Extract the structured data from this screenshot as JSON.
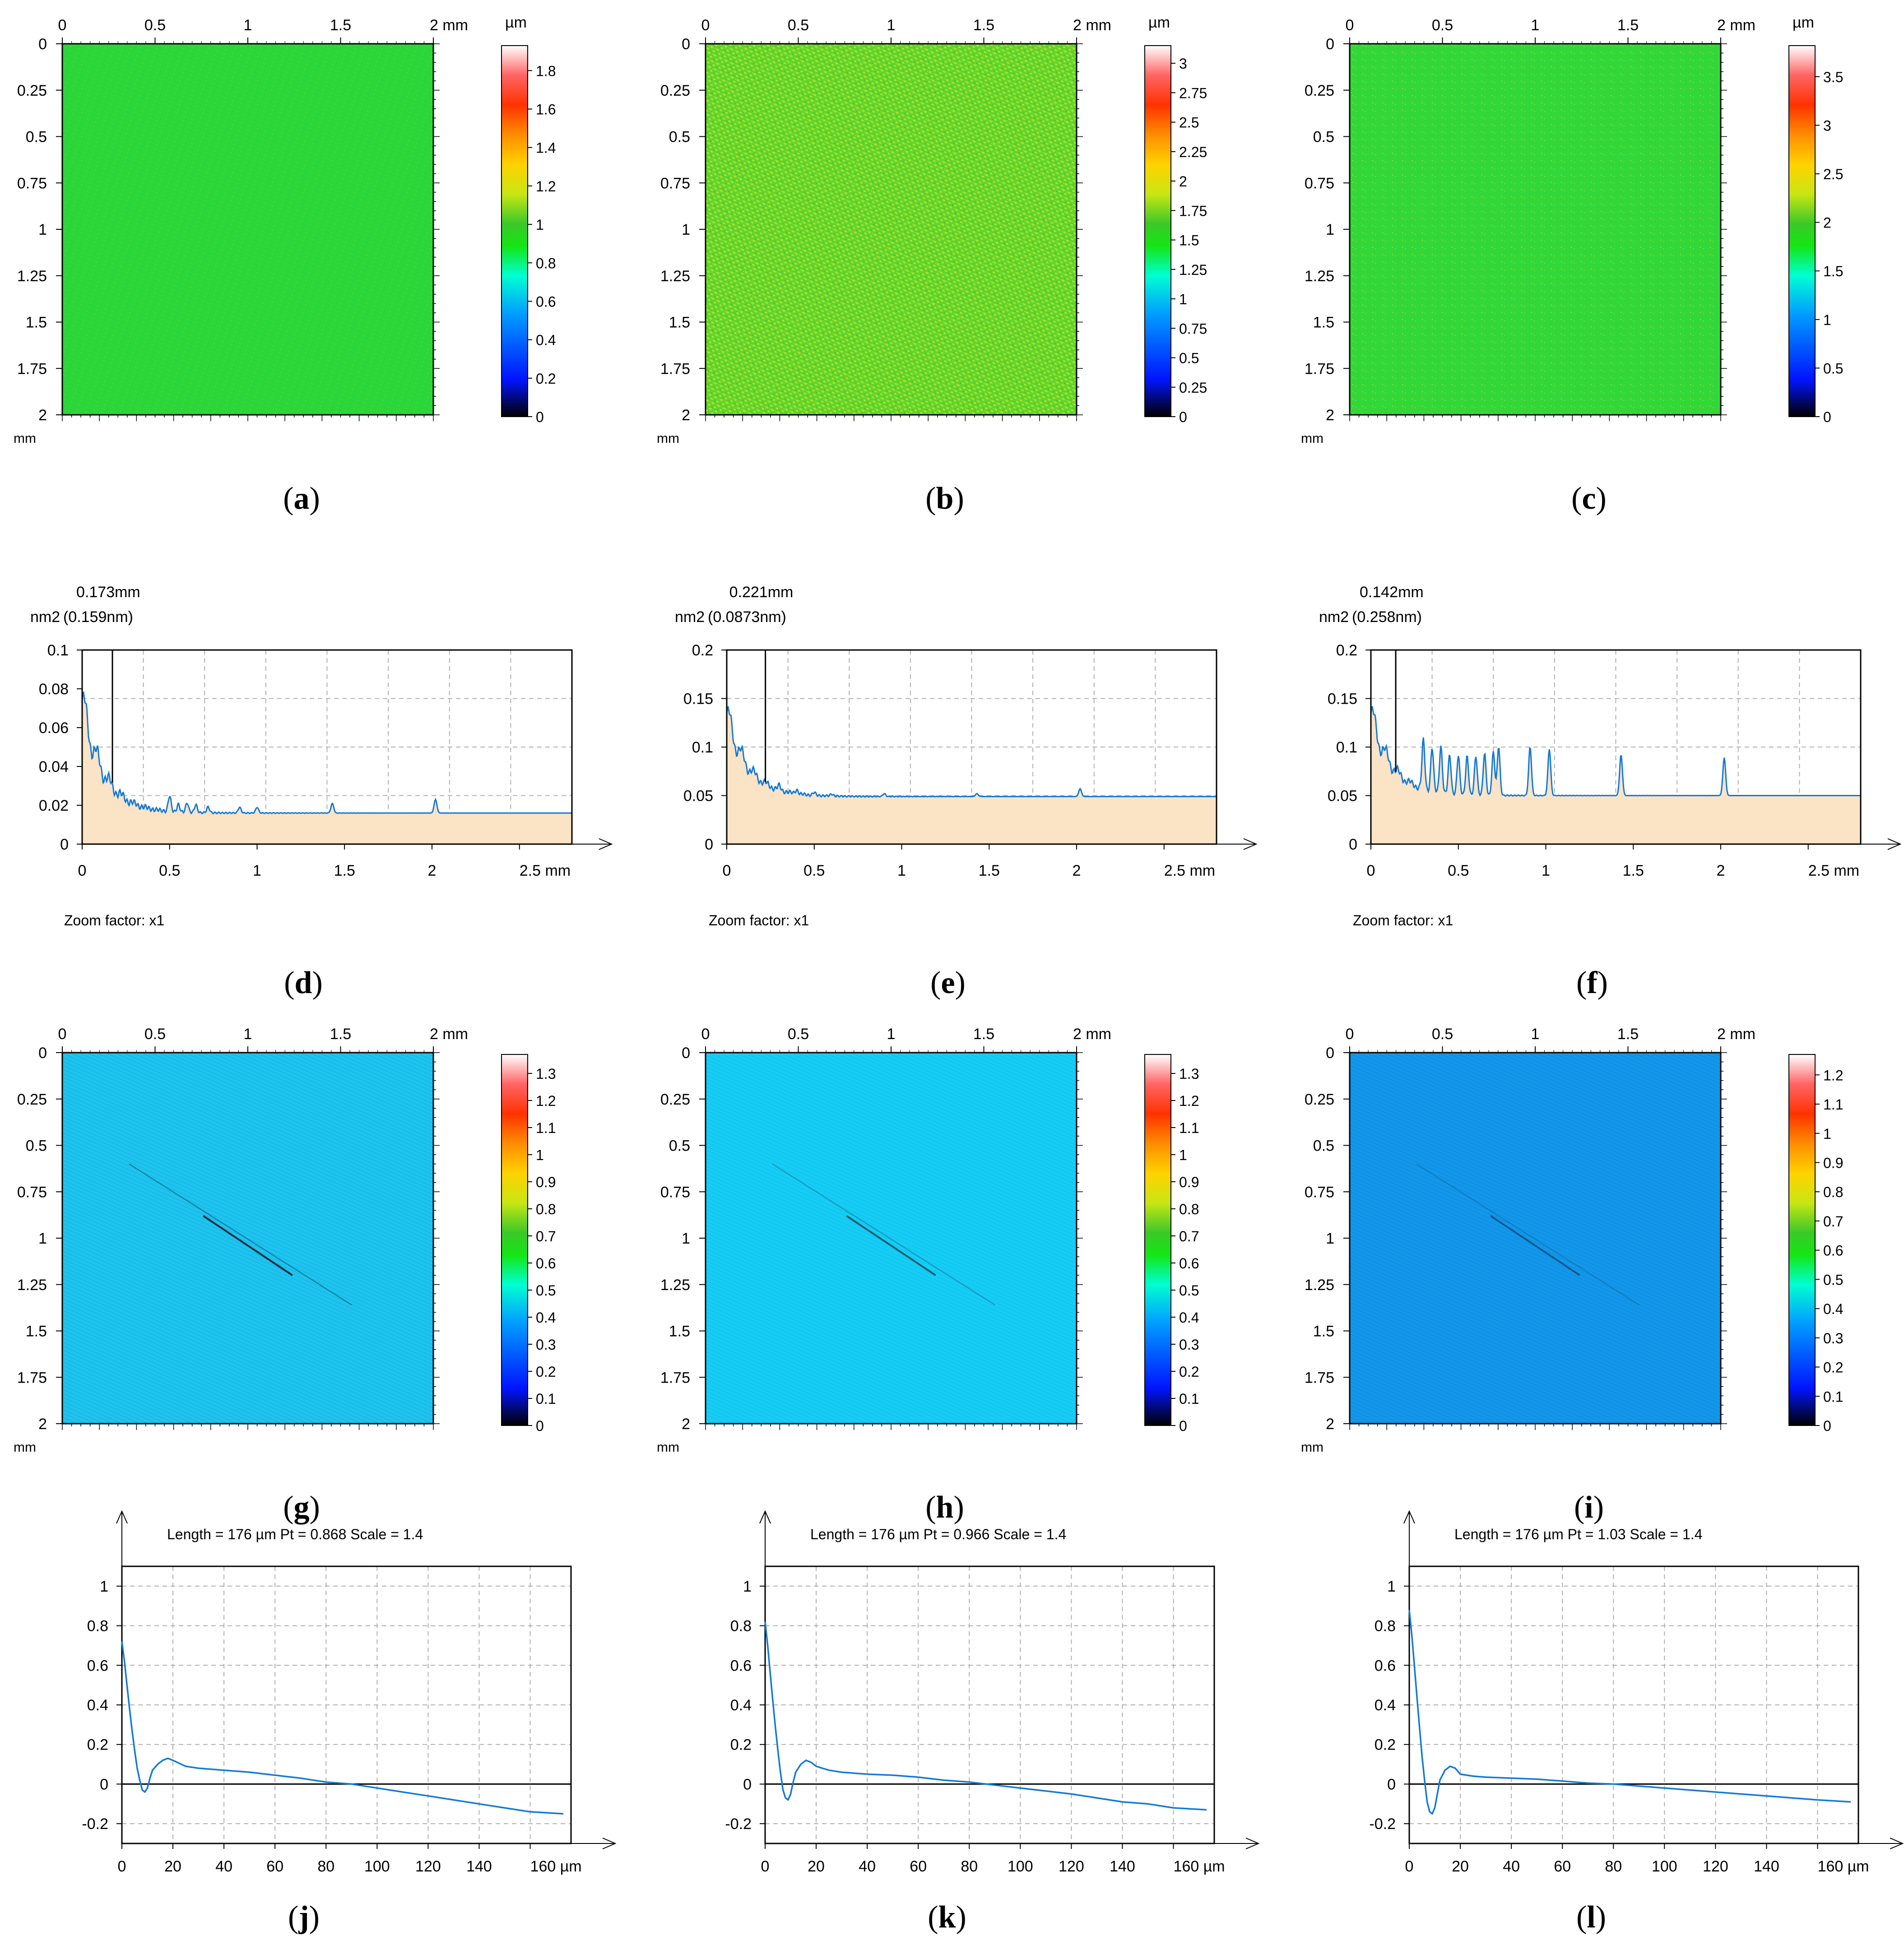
{
  "figure": {
    "heatmaps_row1": [
      {
        "panel": "a",
        "caption_letter": "a",
        "x_unit": "mm",
        "y_unit": "mm",
        "x_ticks": [
          "0",
          "0.5",
          "1",
          "1.5",
          "2 mm"
        ],
        "y_ticks": [
          "0",
          "0.25",
          "0.5",
          "0.75",
          "1",
          "1.25",
          "1.5",
          "1.75",
          "2"
        ],
        "colorbar": {
          "unit": "µm",
          "ticks": [
            "0",
            "0.2",
            "0.4",
            "0.6",
            "0.8",
            "1",
            "1.2",
            "1.4",
            "1.6",
            "1.8"
          ],
          "max": 1.93
        },
        "fill_color": "#2bd638",
        "pattern": "fine_green"
      },
      {
        "panel": "b",
        "caption_letter": "b",
        "x_unit": "mm",
        "y_unit": "mm",
        "x_ticks": [
          "0",
          "0.5",
          "1",
          "1.5",
          "2 mm"
        ],
        "y_ticks": [
          "0",
          "0.25",
          "0.5",
          "0.75",
          "1",
          "1.25",
          "1.5",
          "1.75",
          "2"
        ],
        "colorbar": {
          "unit": "µm",
          "ticks": [
            "0",
            "0.25",
            "0.5",
            "0.75",
            "1",
            "1.25",
            "1.5",
            "1.75",
            "2",
            "2.25",
            "2.5",
            "2.75",
            "3"
          ],
          "max": 3.15
        },
        "fill_color": "#7fd92c",
        "pattern": "mottled_yellow_green"
      },
      {
        "panel": "c",
        "caption_letter": "c",
        "x_unit": "mm",
        "y_unit": "mm",
        "x_ticks": [
          "0",
          "0.5",
          "1",
          "1.5",
          "2 mm"
        ],
        "y_ticks": [
          "0",
          "0.25",
          "0.5",
          "0.75",
          "1",
          "1.25",
          "1.5",
          "1.75",
          "2"
        ],
        "colorbar": {
          "unit": "µm",
          "ticks": [
            "0",
            "0.5",
            "1",
            "1.5",
            "2",
            "2.5",
            "3",
            "3.5"
          ],
          "max": 3.82
        },
        "fill_color": "#33d838",
        "pattern": "speckled_green"
      }
    ],
    "psd_row": [
      {
        "panel": "d",
        "caption_letter": "d",
        "marker_text": "0.173mm",
        "unit_label": "nm2",
        "marker_value_text": "(0.159nm)",
        "zoom_text": "Zoom factor: x1",
        "x_tick_labels": [
          "0",
          "0.5",
          "1",
          "1.5",
          "2",
          "2.5 mm"
        ],
        "y_tick_labels": [
          "0",
          "0.02",
          "0.04",
          "0.06",
          "0.08",
          "0.1"
        ],
        "xlim": [
          0,
          2.8
        ],
        "ylim": [
          0,
          0.1
        ],
        "marker_x": 0.173,
        "baseline": 0.016,
        "peak": 0.084,
        "spikes": [
          [
            0.5,
            0.024
          ],
          [
            0.55,
            0.02
          ],
          [
            0.6,
            0.021
          ],
          [
            0.65,
            0.02
          ],
          [
            0.72,
            0.019
          ],
          [
            0.9,
            0.019
          ],
          [
            1.0,
            0.019
          ],
          [
            1.43,
            0.021
          ],
          [
            2.02,
            0.023
          ]
        ]
      },
      {
        "panel": "e",
        "caption_letter": "e",
        "marker_text": "0.221mm",
        "unit_label": "nm2",
        "marker_value_text": "(0.0873nm)",
        "zoom_text": "Zoom factor: x1",
        "x_tick_labels": [
          "0",
          "0.5",
          "1",
          "1.5",
          "2",
          "2.5 mm"
        ],
        "y_tick_labels": [
          "0",
          "0.05",
          "0.1",
          "0.15",
          "0.2"
        ],
        "xlim": [
          0,
          2.8
        ],
        "ylim": [
          0,
          0.2
        ],
        "marker_x": 0.221,
        "baseline": 0.049,
        "peak": 0.15,
        "spikes": [
          [
            0.3,
            0.053
          ],
          [
            0.4,
            0.053
          ],
          [
            0.5,
            0.052
          ],
          [
            0.6,
            0.051
          ],
          [
            0.9,
            0.052
          ],
          [
            1.43,
            0.052
          ],
          [
            2.02,
            0.057
          ]
        ]
      },
      {
        "panel": "f",
        "caption_letter": "f",
        "marker_text": "0.142mm",
        "unit_label": "nm2",
        "marker_value_text": "(0.258nm)",
        "zoom_text": "Zoom factor: x1",
        "x_tick_labels": [
          "0",
          "0.5",
          "1",
          "1.5",
          "2",
          "2.5 mm"
        ],
        "y_tick_labels": [
          "0",
          "0.05",
          "0.1",
          "0.15",
          "0.2"
        ],
        "xlim": [
          0,
          2.8
        ],
        "ylim": [
          0,
          0.2
        ],
        "marker_x": 0.142,
        "baseline": 0.05,
        "peak": 0.15,
        "spikes": [
          [
            0.3,
            0.1
          ],
          [
            0.35,
            0.095
          ],
          [
            0.4,
            0.098
          ],
          [
            0.45,
            0.09
          ],
          [
            0.5,
            0.09
          ],
          [
            0.55,
            0.09
          ],
          [
            0.6,
            0.09
          ],
          [
            0.65,
            0.093
          ],
          [
            0.7,
            0.095
          ],
          [
            0.73,
            0.1
          ],
          [
            0.91,
            0.1
          ],
          [
            1.02,
            0.098
          ],
          [
            1.43,
            0.092
          ],
          [
            2.02,
            0.089
          ]
        ]
      }
    ],
    "heatmaps_row3": [
      {
        "panel": "g",
        "caption_letter": "g",
        "x_unit": "mm",
        "y_unit": "mm",
        "x_ticks": [
          "0",
          "0.5",
          "1",
          "1.5",
          "2 mm"
        ],
        "y_ticks": [
          "0",
          "0.25",
          "0.5",
          "0.75",
          "1",
          "1.25",
          "1.5",
          "1.75",
          "2"
        ],
        "colorbar": {
          "unit": "",
          "ticks": [
            "0",
            "0.1",
            "0.2",
            "0.3",
            "0.4",
            "0.5",
            "0.6",
            "0.7",
            "0.8",
            "0.9",
            "1",
            "1.1",
            "1.2",
            "1.3"
          ],
          "max": 1.37
        },
        "fill_color": "#1ec3ee",
        "streak_strength": 0.85
      },
      {
        "panel": "h",
        "caption_letter": "h",
        "x_unit": "mm",
        "y_unit": "mm",
        "x_ticks": [
          "0",
          "0.5",
          "1",
          "1.5",
          "2 mm"
        ],
        "y_ticks": [
          "0",
          "0.25",
          "0.5",
          "0.75",
          "1",
          "1.25",
          "1.5",
          "1.75",
          "2"
        ],
        "colorbar": {
          "unit": "",
          "ticks": [
            "0",
            "0.1",
            "0.2",
            "0.3",
            "0.4",
            "0.5",
            "0.6",
            "0.7",
            "0.8",
            "0.9",
            "1",
            "1.1",
            "1.2",
            "1.3"
          ],
          "max": 1.37
        },
        "fill_color": "#15cdf5",
        "streak_strength": 0.6
      },
      {
        "panel": "i",
        "caption_letter": "i",
        "x_unit": "mm",
        "y_unit": "mm",
        "x_ticks": [
          "0",
          "0.5",
          "1",
          "1.5",
          "2 mm"
        ],
        "y_ticks": [
          "0",
          "0.25",
          "0.5",
          "0.75",
          "1",
          "1.25",
          "1.5",
          "1.75",
          "2"
        ],
        "colorbar": {
          "unit": "",
          "ticks": [
            "0",
            "0.1",
            "0.2",
            "0.3",
            "0.4",
            "0.5",
            "0.6",
            "0.7",
            "0.8",
            "0.9",
            "1",
            "1.1",
            "1.2"
          ],
          "max": 1.27
        },
        "fill_color": "#1297ea",
        "streak_strength": 0.45
      }
    ],
    "acf_row": [
      {
        "panel": "j",
        "caption_letter": "j",
        "header": "Length = 176 µm  Pt = 0.868    Scale = 1.4",
        "x_tick_labels": [
          "0",
          "20",
          "40",
          "60",
          "80",
          "100",
          "120",
          "140",
          "160 µm"
        ],
        "y_tick_labels": [
          "-0.2",
          "0",
          "0.2",
          "0.4",
          "0.6",
          "0.8",
          "1"
        ],
        "xlim": [
          0,
          176
        ],
        "ylim": [
          -0.3,
          1.1
        ],
        "points": [
          [
            0,
            0.72
          ],
          [
            1,
            0.62
          ],
          [
            2,
            0.5
          ],
          [
            3,
            0.38
          ],
          [
            4,
            0.27
          ],
          [
            5,
            0.17
          ],
          [
            6,
            0.08
          ],
          [
            7,
            0.02
          ],
          [
            8,
            -0.03
          ],
          [
            9,
            -0.04
          ],
          [
            10,
            -0.02
          ],
          [
            11,
            0.03
          ],
          [
            12,
            0.07
          ],
          [
            14,
            0.1
          ],
          [
            16,
            0.12
          ],
          [
            18,
            0.13
          ],
          [
            20,
            0.12
          ],
          [
            25,
            0.09
          ],
          [
            30,
            0.08
          ],
          [
            40,
            0.07
          ],
          [
            50,
            0.06
          ],
          [
            60,
            0.045
          ],
          [
            70,
            0.03
          ],
          [
            80,
            0.01
          ],
          [
            90,
            0.0
          ],
          [
            100,
            -0.02
          ],
          [
            110,
            -0.04
          ],
          [
            120,
            -0.06
          ],
          [
            130,
            -0.08
          ],
          [
            140,
            -0.1
          ],
          [
            150,
            -0.12
          ],
          [
            160,
            -0.14
          ],
          [
            173,
            -0.15
          ]
        ]
      },
      {
        "panel": "k",
        "caption_letter": "k",
        "header": "Length = 176 µm  Pt = 0.966    Scale = 1.4",
        "x_tick_labels": [
          "0",
          "20",
          "40",
          "60",
          "80",
          "100",
          "120",
          "140",
          "160 µm"
        ],
        "y_tick_labels": [
          "-0.2",
          "0",
          "0.2",
          "0.4",
          "0.6",
          "0.8",
          "1"
        ],
        "xlim": [
          0,
          176
        ],
        "ylim": [
          -0.3,
          1.1
        ],
        "points": [
          [
            0,
            0.82
          ],
          [
            1,
            0.7
          ],
          [
            2,
            0.56
          ],
          [
            3,
            0.42
          ],
          [
            4,
            0.29
          ],
          [
            5,
            0.17
          ],
          [
            6,
            0.06
          ],
          [
            7,
            -0.03
          ],
          [
            8,
            -0.07
          ],
          [
            9,
            -0.08
          ],
          [
            10,
            -0.05
          ],
          [
            11,
            0.01
          ],
          [
            12,
            0.06
          ],
          [
            14,
            0.1
          ],
          [
            16,
            0.12
          ],
          [
            18,
            0.11
          ],
          [
            20,
            0.09
          ],
          [
            25,
            0.07
          ],
          [
            30,
            0.06
          ],
          [
            40,
            0.05
          ],
          [
            50,
            0.045
          ],
          [
            60,
            0.035
          ],
          [
            70,
            0.02
          ],
          [
            80,
            0.01
          ],
          [
            90,
            -0.005
          ],
          [
            100,
            -0.02
          ],
          [
            110,
            -0.035
          ],
          [
            120,
            -0.05
          ],
          [
            130,
            -0.07
          ],
          [
            140,
            -0.09
          ],
          [
            150,
            -0.1
          ],
          [
            160,
            -0.12
          ],
          [
            173,
            -0.13
          ]
        ]
      },
      {
        "panel": "l",
        "caption_letter": "l",
        "header": "Length = 176 µm  Pt = 1.03    Scale = 1.4",
        "x_tick_labels": [
          "0",
          "20",
          "40",
          "60",
          "80",
          "100",
          "120",
          "140",
          "160 µm"
        ],
        "y_tick_labels": [
          "-0.2",
          "0",
          "0.2",
          "0.4",
          "0.6",
          "0.8",
          "1"
        ],
        "xlim": [
          0,
          176
        ],
        "ylim": [
          -0.3,
          1.1
        ],
        "points": [
          [
            0,
            0.88
          ],
          [
            1,
            0.75
          ],
          [
            2,
            0.6
          ],
          [
            3,
            0.44
          ],
          [
            4,
            0.29
          ],
          [
            5,
            0.14
          ],
          [
            6,
            0.02
          ],
          [
            7,
            -0.09
          ],
          [
            8,
            -0.14
          ],
          [
            9,
            -0.15
          ],
          [
            10,
            -0.12
          ],
          [
            11,
            -0.05
          ],
          [
            12,
            0.02
          ],
          [
            14,
            0.07
          ],
          [
            16,
            0.09
          ],
          [
            18,
            0.08
          ],
          [
            20,
            0.05
          ],
          [
            25,
            0.04
          ],
          [
            30,
            0.035
          ],
          [
            40,
            0.03
          ],
          [
            50,
            0.025
          ],
          [
            60,
            0.015
          ],
          [
            70,
            0.005
          ],
          [
            80,
            0.0
          ],
          [
            90,
            -0.01
          ],
          [
            100,
            -0.02
          ],
          [
            110,
            -0.03
          ],
          [
            120,
            -0.04
          ],
          [
            130,
            -0.05
          ],
          [
            140,
            -0.06
          ],
          [
            150,
            -0.07
          ],
          [
            160,
            -0.08
          ],
          [
            173,
            -0.09
          ]
        ]
      }
    ]
  },
  "chart_data": [
    {
      "type": "heatmap",
      "panel": "a",
      "title": "",
      "xlabel": "mm",
      "ylabel": "mm",
      "xlim": [
        0,
        2
      ],
      "ylim": [
        0,
        2
      ],
      "colorbar_unit": "µm",
      "colorbar_range": [
        0,
        1.93
      ]
    },
    {
      "type": "heatmap",
      "panel": "b",
      "title": "",
      "xlabel": "mm",
      "ylabel": "mm",
      "xlim": [
        0,
        2
      ],
      "ylim": [
        0,
        2
      ],
      "colorbar_unit": "µm",
      "colorbar_range": [
        0,
        3.15
      ]
    },
    {
      "type": "heatmap",
      "panel": "c",
      "title": "",
      "xlabel": "mm",
      "ylabel": "mm",
      "xlim": [
        0,
        2
      ],
      "ylim": [
        0,
        2
      ],
      "colorbar_unit": "µm",
      "colorbar_range": [
        0,
        3.82
      ]
    },
    {
      "type": "area",
      "panel": "d",
      "ylabel": "nm2",
      "xlabel": "mm",
      "xlim": [
        0,
        2.8
      ],
      "ylim": [
        0,
        0.1
      ],
      "marker": {
        "x_mm": 0.173,
        "value_nm": 0.159
      }
    },
    {
      "type": "area",
      "panel": "e",
      "ylabel": "nm2",
      "xlabel": "mm",
      "xlim": [
        0,
        2.8
      ],
      "ylim": [
        0,
        0.2
      ],
      "marker": {
        "x_mm": 0.221,
        "value_nm": 0.0873
      }
    },
    {
      "type": "area",
      "panel": "f",
      "ylabel": "nm2",
      "xlabel": "mm",
      "xlim": [
        0,
        2.8
      ],
      "ylim": [
        0,
        0.2
      ],
      "marker": {
        "x_mm": 0.142,
        "value_nm": 0.258
      }
    },
    {
      "type": "heatmap",
      "panel": "g",
      "xlabel": "mm",
      "ylabel": "mm",
      "xlim": [
        0,
        2
      ],
      "ylim": [
        0,
        2
      ],
      "colorbar_range": [
        0,
        1.37
      ]
    },
    {
      "type": "heatmap",
      "panel": "h",
      "xlabel": "mm",
      "ylabel": "mm",
      "xlim": [
        0,
        2
      ],
      "ylim": [
        0,
        2
      ],
      "colorbar_range": [
        0,
        1.37
      ]
    },
    {
      "type": "heatmap",
      "panel": "i",
      "xlabel": "mm",
      "ylabel": "mm",
      "xlim": [
        0,
        2
      ],
      "ylim": [
        0,
        2
      ],
      "colorbar_range": [
        0,
        1.27
      ]
    },
    {
      "type": "line",
      "panel": "j",
      "xlabel": "µm",
      "xlim": [
        0,
        176
      ],
      "ylim": [
        -0.3,
        1.1
      ],
      "length_um": 176,
      "pt": 0.868,
      "scale": 1.4
    },
    {
      "type": "line",
      "panel": "k",
      "xlabel": "µm",
      "xlim": [
        0,
        176
      ],
      "ylim": [
        -0.3,
        1.1
      ],
      "length_um": 176,
      "pt": 0.966,
      "scale": 1.4
    },
    {
      "type": "line",
      "panel": "l",
      "xlabel": "µm",
      "xlim": [
        0,
        176
      ],
      "ylim": [
        -0.3,
        1.1
      ],
      "length_um": 176,
      "pt": 1.03,
      "scale": 1.4
    }
  ]
}
